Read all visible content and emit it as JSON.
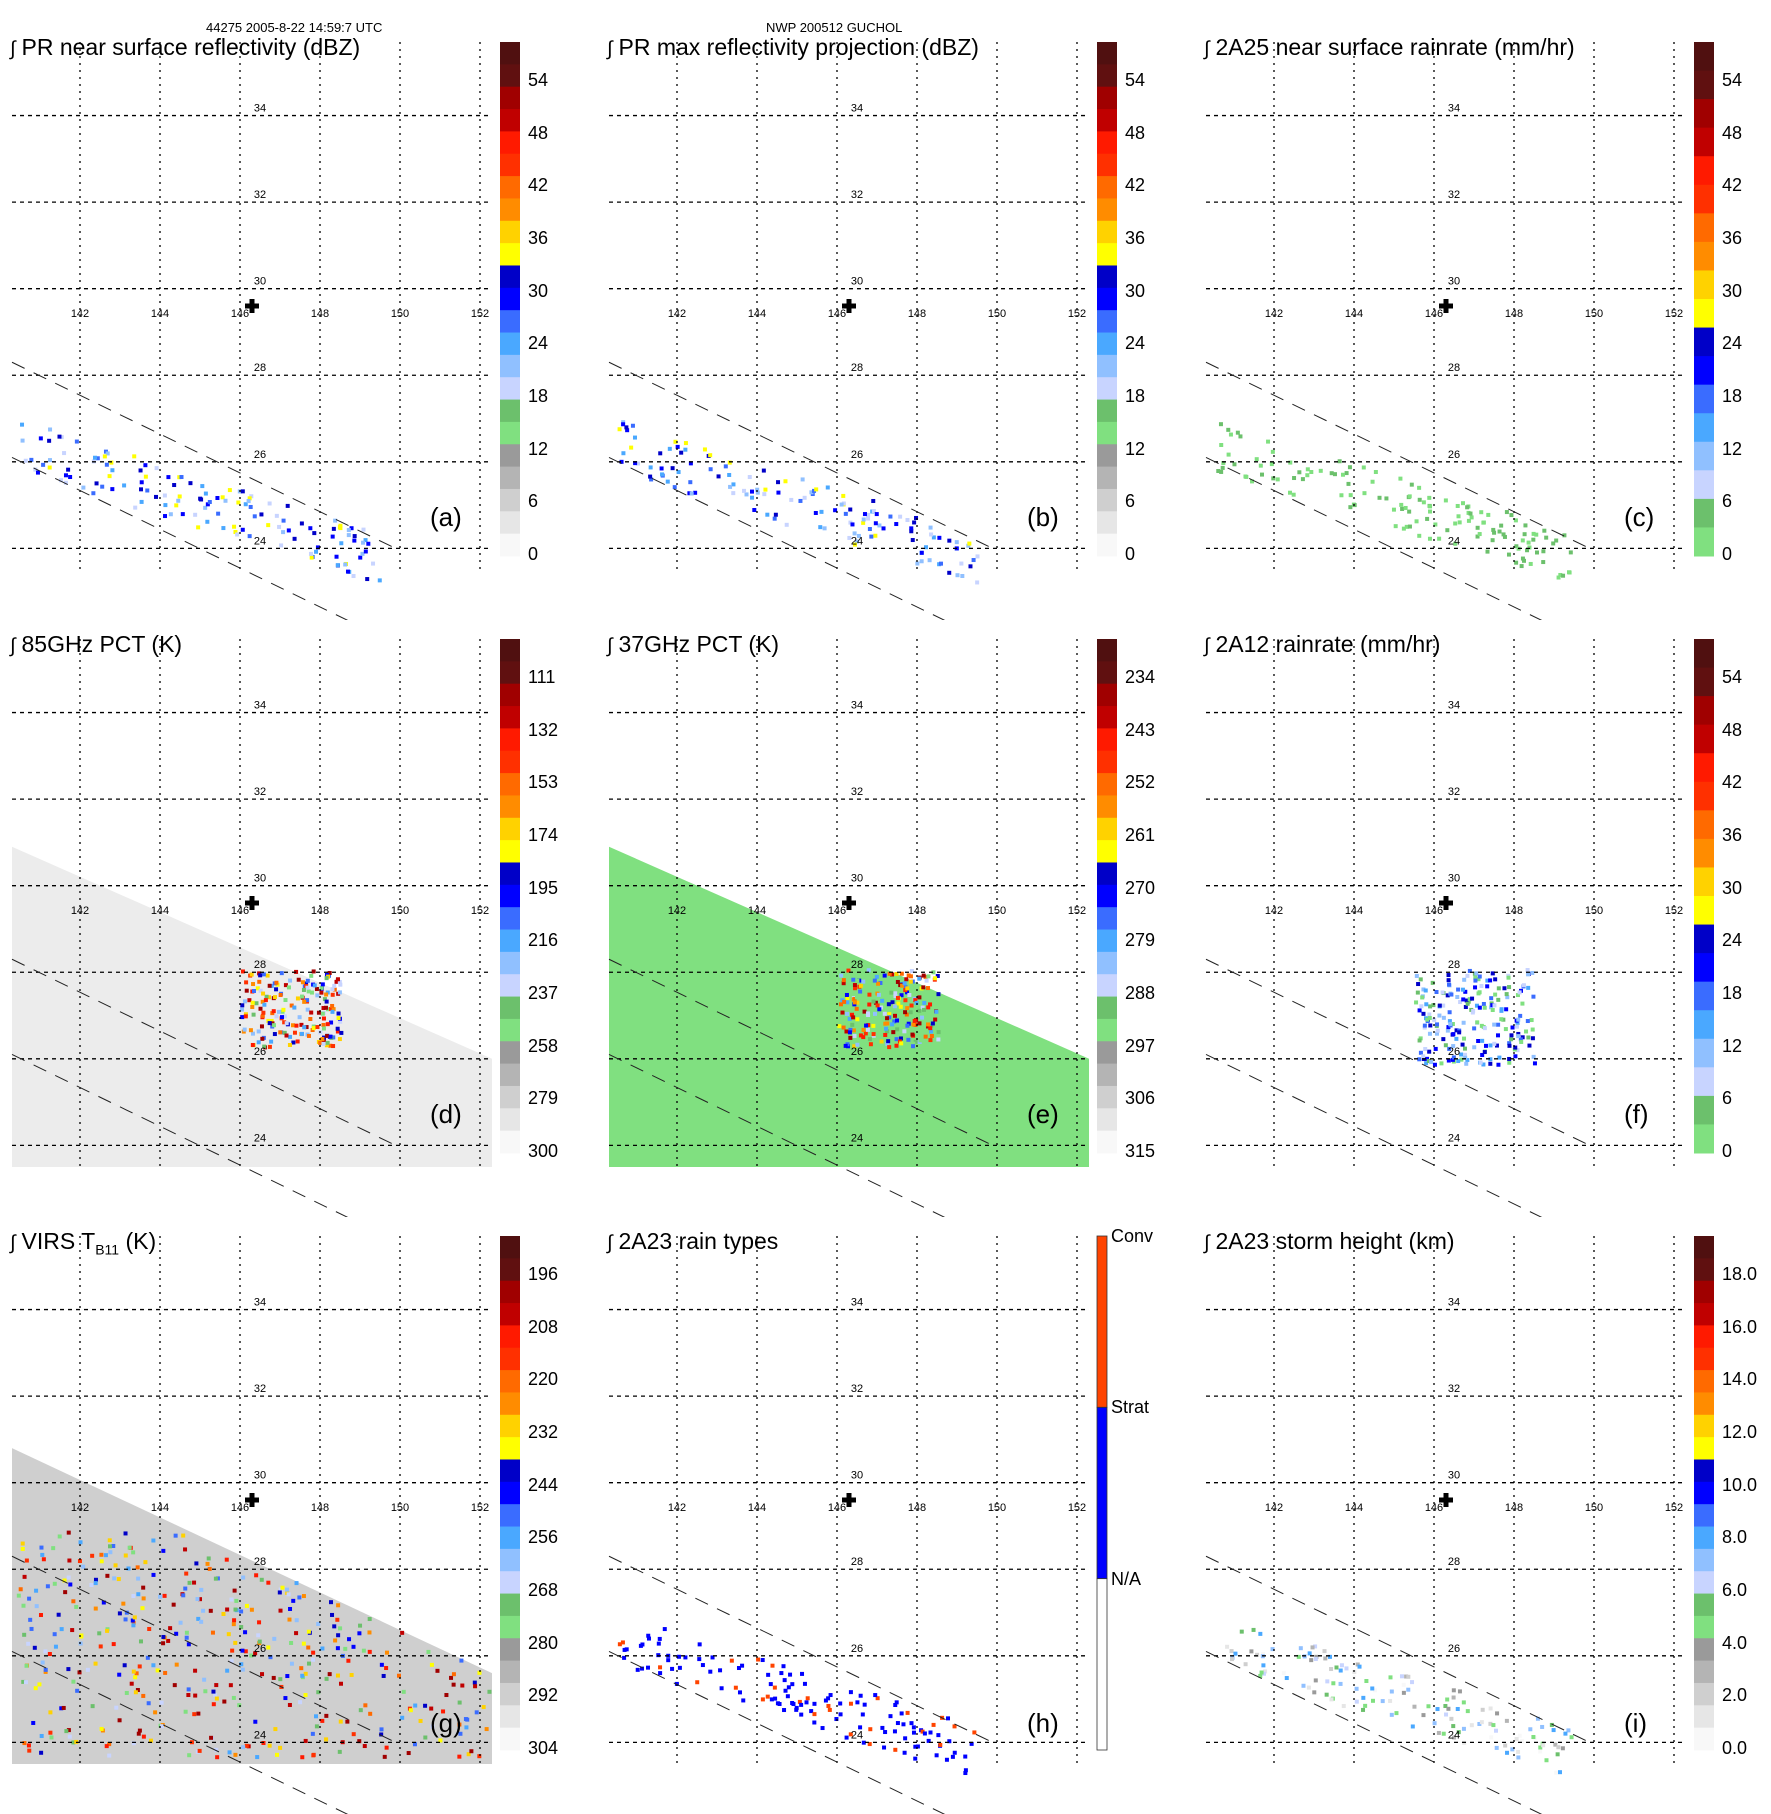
{
  "header": {
    "orbit_time": "44275 2005-8-22 14:59:7 UTC",
    "storm_id": "NWP 200512 GUCHOL"
  },
  "chart_data": {
    "type": "heatmap",
    "description": "TRMM overpass of typhoon Guchol, 3x3 grid of satellite product maps",
    "map": {
      "lon_ticks": [
        "142",
        "144",
        "146",
        "148",
        "150",
        "152"
      ],
      "lat_ticks": [
        "34",
        "32",
        "30",
        "28",
        "26",
        "24"
      ],
      "lon_range": [
        140.3,
        152.3
      ],
      "lat_range": [
        23.5,
        35.7
      ],
      "grid": true,
      "storm_center": {
        "lon": 146.3,
        "lat": 29.6,
        "marker": "plus"
      },
      "pr_swath": "diagonal dashed lines from NW to SE"
    },
    "panels": [
      {
        "id": "a",
        "label": "(a)",
        "title": "PR near surface reflectivity (dBZ)",
        "cb_ticks": [
          "54",
          "48",
          "42",
          "36",
          "30",
          "24",
          "18",
          "12",
          "6",
          "0"
        ],
        "cb_range": [
          0,
          60
        ],
        "scheme": "dbz"
      },
      {
        "id": "b",
        "label": "(b)",
        "title": "PR max reflectivity projection (dBZ)",
        "cb_ticks": [
          "54",
          "48",
          "42",
          "36",
          "30",
          "24",
          "18",
          "12",
          "6",
          "0"
        ],
        "cb_range": [
          0,
          60
        ],
        "scheme": "dbz"
      },
      {
        "id": "c",
        "label": "(c)",
        "title": "2A25 near surface rainrate (mm/hr)",
        "cb_ticks": [
          "54",
          "48",
          "42",
          "36",
          "30",
          "24",
          "18",
          "12",
          "6",
          "0"
        ],
        "cb_range": [
          0,
          60
        ],
        "scheme": "rain"
      },
      {
        "id": "d",
        "label": "(d)",
        "title": "85GHz PCT (K)",
        "cb_ticks": [
          "111",
          "132",
          "153",
          "174",
          "195",
          "216",
          "237",
          "258",
          "279",
          "300"
        ],
        "cb_range": [
          300,
          90
        ],
        "scheme": "dbz"
      },
      {
        "id": "e",
        "label": "(e)",
        "title": "37GHz PCT (K)",
        "cb_ticks": [
          "234",
          "243",
          "252",
          "261",
          "270",
          "279",
          "288",
          "297",
          "306",
          "315"
        ],
        "cb_range": [
          315,
          225
        ],
        "scheme": "dbz"
      },
      {
        "id": "f",
        "label": "(f)",
        "title": "2A12 rainrate (mm/hr)",
        "cb_ticks": [
          "54",
          "48",
          "42",
          "36",
          "30",
          "24",
          "18",
          "12",
          "6",
          "0"
        ],
        "cb_range": [
          0,
          60
        ],
        "scheme": "rain"
      },
      {
        "id": "g",
        "label": "(g)",
        "title_main": "VIRS T",
        "title_sub": "B11",
        "title_unit": " (K)",
        "cb_ticks": [
          "196",
          "208",
          "220",
          "232",
          "244",
          "256",
          "268",
          "280",
          "292",
          "304"
        ],
        "cb_range": [
          304,
          184
        ],
        "scheme": "dbz"
      },
      {
        "id": "h",
        "label": "(h)",
        "title": "2A23 rain types",
        "cb_ticks": [
          "Conv",
          "Strat",
          "N/A"
        ],
        "scheme": "types"
      },
      {
        "id": "i",
        "label": "(i)",
        "title": "2A23 storm height (km)",
        "cb_ticks": [
          "18.0",
          "16.0",
          "14.0",
          "12.0",
          "10.0",
          "8.0",
          "6.0",
          "4.0",
          "2.0",
          "0.0"
        ],
        "cb_range": [
          0,
          20
        ],
        "scheme": "dbz"
      }
    ]
  },
  "colors": {
    "dbz": [
      "#f8f8f8",
      "#e6e6e6",
      "#cfcfcf",
      "#b4b4b4",
      "#9a9a9a",
      "#80e080",
      "#6cc06c",
      "#c8d4ff",
      "#90c0ff",
      "#4aa8ff",
      "#3a6cff",
      "#0000ff",
      "#0000c8",
      "#ffff00",
      "#ffd200",
      "#ff8c00",
      "#ff6a00",
      "#ff3000",
      "#ff1a00",
      "#c00000",
      "#a00000",
      "#601010",
      "#501010"
    ],
    "rain": [
      "#80e080",
      "#6cc06c",
      "#c8d4ff",
      "#90c0ff",
      "#4aa8ff",
      "#3a6cff",
      "#0000ff",
      "#0000c8",
      "#ffff00",
      "#ffd200",
      "#ff8c00",
      "#ff6a00",
      "#ff3000",
      "#ff1a00",
      "#c00000",
      "#a00000",
      "#601010",
      "#501010"
    ],
    "types": [
      "#ffffff",
      "#0000ff",
      "#ff4400"
    ]
  }
}
